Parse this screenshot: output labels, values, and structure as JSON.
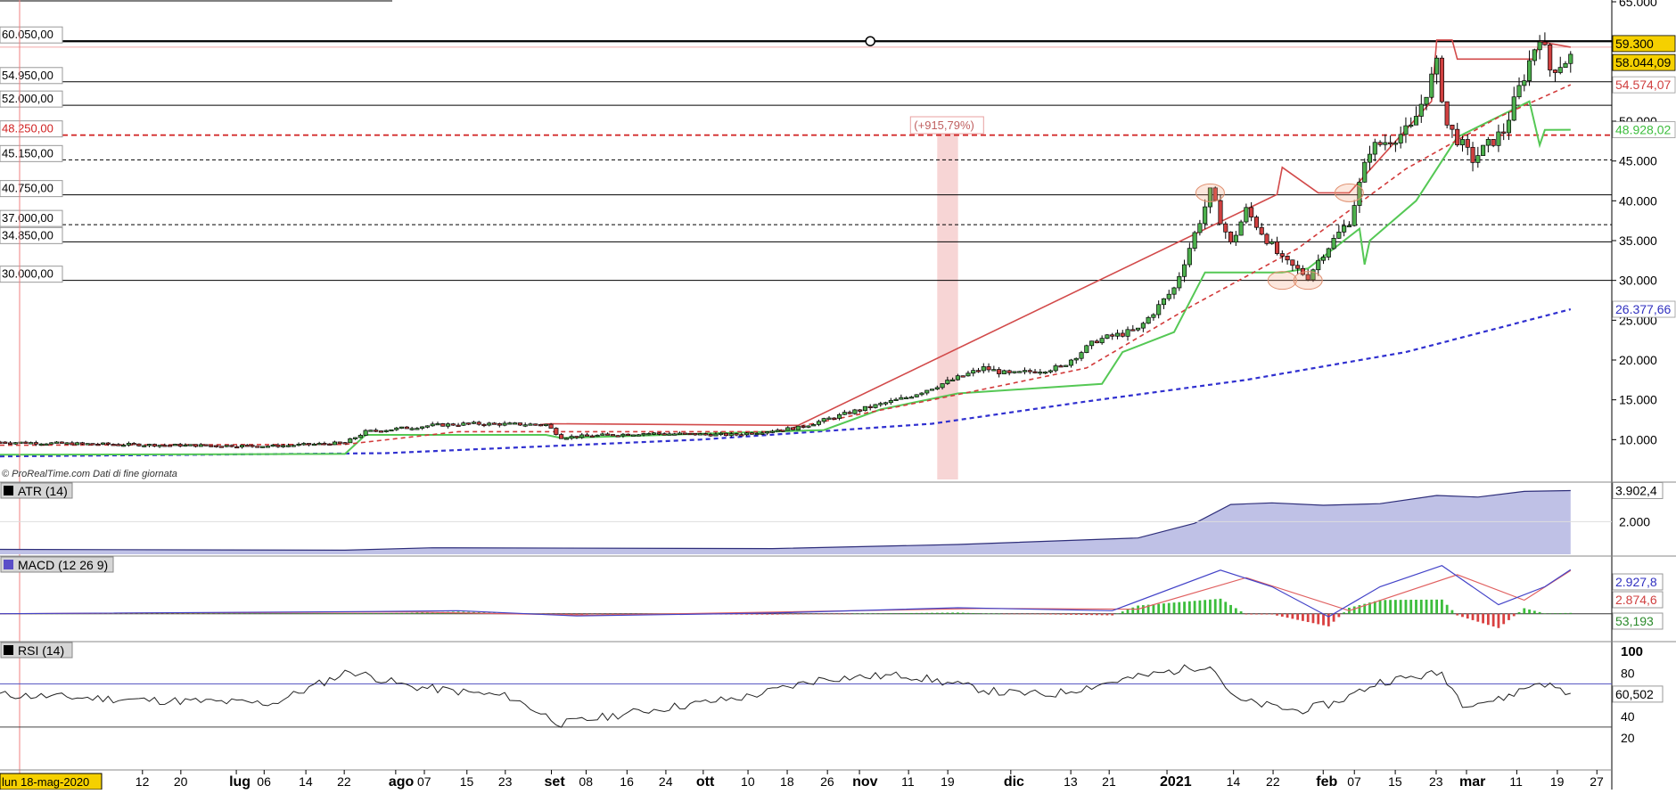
{
  "colors": {
    "candle_up": "#4db04d",
    "candle_down": "#d04040",
    "support_green": "#55c855",
    "resistance_red": "#d24a4a",
    "ma_red_dashed": "#d23a3a",
    "ma_blue_dashed": "#3030d0",
    "atr_fill": "#bfc1e6",
    "atr_line": "#2e2e7a",
    "macd_line": "#4343c8",
    "signal_line": "#e06060",
    "hist_pos": "#3cbd3c",
    "hist_neg": "#d94040",
    "rsi_line": "#222222",
    "rsi_band": "#5050c0",
    "highlight_band": "#f7d5d5",
    "price_box": "#f5d000"
  },
  "watermark": "© ProRealTime.com  Dati di fine giornata",
  "cursor_date": "lun 18-mag-2020",
  "price_levels": [
    {
      "label": "60.050,00",
      "value": 60050,
      "style": "solid-thick",
      "color": "#000000"
    },
    {
      "label": "54.950,00",
      "value": 54950,
      "style": "solid",
      "color": "#000000"
    },
    {
      "label": "52.000,00",
      "value": 52000,
      "style": "solid",
      "color": "#000000"
    },
    {
      "label": "48.250,00",
      "value": 48250,
      "style": "red-dashed",
      "color": "#d02020"
    },
    {
      "label": "45.150,00",
      "value": 45150,
      "style": "dashed",
      "color": "#000000"
    },
    {
      "label": "40.750,00",
      "value": 40750,
      "style": "solid",
      "color": "#000000"
    },
    {
      "label": "37.000,00",
      "value": 37000,
      "style": "dashed",
      "color": "#000000"
    },
    {
      "label": "34.850,00",
      "value": 34850,
      "style": "solid",
      "color": "#000000"
    },
    {
      "label": "30.000,00",
      "value": 30000,
      "style": "solid",
      "color": "#000000"
    }
  ],
  "highlight_label": "(+915,79%)",
  "right_value_tags": [
    {
      "label": "59.300",
      "bg": "#f5d000",
      "fg": "#000000",
      "value": 59300
    },
    {
      "label": "58.044,09",
      "bg": "#f5d000",
      "fg": "#000000",
      "value": 58044.09
    },
    {
      "label": "54.574,07",
      "bg": "#ffffff",
      "fg": "#d04040",
      "value": 54574.07
    },
    {
      "label": "48.928,02",
      "bg": "#ffffff",
      "fg": "#3cbd3c",
      "value": 48928.02
    },
    {
      "label": "26.377,66",
      "bg": "#ffffff",
      "fg": "#3030c0",
      "value": 26377.66
    }
  ],
  "x_axis": {
    "labels": [
      {
        "text": "12",
        "bold": false,
        "pos": 0.085
      },
      {
        "text": "20",
        "bold": false,
        "pos": 0.1079
      },
      {
        "text": "lug",
        "bold": true,
        "pos": 0.141
      },
      {
        "text": "06",
        "bold": false,
        "pos": 0.1576
      },
      {
        "text": "14",
        "bold": false,
        "pos": 0.1825
      },
      {
        "text": "22",
        "bold": false,
        "pos": 0.2054
      },
      {
        "text": "ago",
        "bold": true,
        "pos": 0.2361
      },
      {
        "text": "07",
        "bold": false,
        "pos": 0.2532
      },
      {
        "text": "15",
        "bold": false,
        "pos": 0.2786
      },
      {
        "text": "23",
        "bold": false,
        "pos": 0.3015
      },
      {
        "text": "set",
        "bold": true,
        "pos": 0.329
      },
      {
        "text": "08",
        "bold": false,
        "pos": 0.3497
      },
      {
        "text": "16",
        "bold": false,
        "pos": 0.3741
      },
      {
        "text": "24",
        "bold": false,
        "pos": 0.3973
      },
      {
        "text": "ott",
        "bold": true,
        "pos": 0.4196
      },
      {
        "text": "10",
        "bold": false,
        "pos": 0.4463
      },
      {
        "text": "18",
        "bold": false,
        "pos": 0.4697
      },
      {
        "text": "26",
        "bold": false,
        "pos": 0.4937
      },
      {
        "text": "nov",
        "bold": true,
        "pos": 0.5128
      },
      {
        "text": "11",
        "bold": false,
        "pos": 0.5421
      },
      {
        "text": "19",
        "bold": false,
        "pos": 0.5655
      },
      {
        "text": "dic",
        "bold": true,
        "pos": 0.6031
      },
      {
        "text": "13",
        "bold": false,
        "pos": 0.6389
      },
      {
        "text": "21",
        "bold": false,
        "pos": 0.6618
      },
      {
        "text": "2021",
        "bold": true,
        "pos": 0.6963
      },
      {
        "text": "14",
        "bold": false,
        "pos": 0.736
      },
      {
        "text": "22",
        "bold": false,
        "pos": 0.7596
      },
      {
        "text": "feb",
        "bold": true,
        "pos": 0.7895
      },
      {
        "text": "07",
        "bold": false,
        "pos": 0.8081
      },
      {
        "text": "15",
        "bold": false,
        "pos": 0.8325
      },
      {
        "text": "23",
        "bold": false,
        "pos": 0.8569
      },
      {
        "text": "mar",
        "bold": true,
        "pos": 0.875
      },
      {
        "text": "11",
        "bold": false,
        "pos": 0.905
      },
      {
        "text": "19",
        "bold": false,
        "pos": 0.9292
      },
      {
        "text": "27",
        "bold": false,
        "pos": 0.9528
      }
    ]
  },
  "panels": {
    "atr": {
      "title": "ATR (14)",
      "value_label": "3.902,4",
      "ticks": [
        {
          "label": "2.000",
          "value": 2000
        }
      ]
    },
    "macd": {
      "title": "MACD (12 26 9)",
      "macd_label": "2.927,8",
      "signal_label": "2.874,6",
      "hist_label": "53,193"
    },
    "rsi": {
      "title": "RSI (14)",
      "value_label": "60,502",
      "ticks": [
        {
          "label": "100",
          "value": 100
        },
        {
          "label": "80",
          "value": 80
        },
        {
          "label": "60",
          "value": 60
        },
        {
          "label": "40",
          "value": 40
        },
        {
          "label": "20",
          "value": 20
        }
      ]
    }
  },
  "chart_data": {
    "type": "candlestick",
    "title": "",
    "xlabel": "",
    "ylabel": "",
    "x_range": [
      "2020-05-18",
      "2021-03-27"
    ],
    "ylim": [
      5000,
      65000
    ],
    "y_ticks": [
      "10.000",
      "15.000",
      "20.000",
      "25.000",
      "30.000",
      "35.000",
      "40.000",
      "45.000",
      "50.000",
      "55.000",
      "60.000",
      "65.000"
    ],
    "close_anchors": [
      {
        "date": "2020-05-18",
        "value": 9700
      },
      {
        "date": "2020-06-01",
        "value": 9500
      },
      {
        "date": "2020-06-20",
        "value": 9300
      },
      {
        "date": "2020-07-10",
        "value": 9200
      },
      {
        "date": "2020-07-24",
        "value": 9600
      },
      {
        "date": "2020-07-28",
        "value": 11000
      },
      {
        "date": "2020-08-10",
        "value": 11800
      },
      {
        "date": "2020-08-17",
        "value": 12000
      },
      {
        "date": "2020-09-01",
        "value": 11900
      },
      {
        "date": "2020-09-04",
        "value": 10300
      },
      {
        "date": "2020-09-20",
        "value": 10800
      },
      {
        "date": "2020-10-07",
        "value": 10600
      },
      {
        "date": "2020-10-20",
        "value": 11500
      },
      {
        "date": "2020-10-31",
        "value": 13600
      },
      {
        "date": "2020-11-10",
        "value": 15300
      },
      {
        "date": "2020-11-25",
        "value": 19000
      },
      {
        "date": "2020-11-30",
        "value": 18200
      },
      {
        "date": "2020-12-10",
        "value": 19100
      },
      {
        "date": "2020-12-17",
        "value": 22500
      },
      {
        "date": "2020-12-25",
        "value": 23800
      },
      {
        "date": "2021-01-01",
        "value": 29000
      },
      {
        "date": "2021-01-08",
        "value": 41000
      },
      {
        "date": "2021-01-12",
        "value": 34500
      },
      {
        "date": "2021-01-15",
        "value": 38800
      },
      {
        "date": "2021-01-22",
        "value": 32500
      },
      {
        "date": "2021-01-27",
        "value": 30500
      },
      {
        "date": "2021-01-30",
        "value": 33500
      },
      {
        "date": "2021-02-04",
        "value": 37500
      },
      {
        "date": "2021-02-08",
        "value": 46500
      },
      {
        "date": "2021-02-16",
        "value": 49000
      },
      {
        "date": "2021-02-21",
        "value": 57000
      },
      {
        "date": "2021-02-23",
        "value": 49500
      },
      {
        "date": "2021-02-28",
        "value": 45200
      },
      {
        "date": "2021-03-06",
        "value": 48800
      },
      {
        "date": "2021-03-13",
        "value": 61000
      },
      {
        "date": "2021-03-15",
        "value": 56500
      },
      {
        "date": "2021-03-19",
        "value": 58044
      }
    ],
    "support_line": [
      {
        "date": "2020-05-18",
        "value": 8100
      },
      {
        "date": "2020-07-24",
        "value": 8200
      },
      {
        "date": "2020-07-28",
        "value": 10600
      },
      {
        "date": "2020-09-01",
        "value": 10600
      },
      {
        "date": "2020-09-04",
        "value": 10200
      },
      {
        "date": "2020-10-25",
        "value": 11200
      },
      {
        "date": "2020-11-05",
        "value": 13800
      },
      {
        "date": "2020-11-20",
        "value": 15800
      },
      {
        "date": "2020-12-18",
        "value": 17000
      },
      {
        "date": "2020-12-22",
        "value": 21000
      },
      {
        "date": "2021-01-01",
        "value": 23500
      },
      {
        "date": "2021-01-05",
        "value": 28500
      },
      {
        "date": "2021-01-07",
        "value": 31000
      },
      {
        "date": "2021-01-22",
        "value": 31000
      },
      {
        "date": "2021-01-27",
        "value": 31500
      },
      {
        "date": "2021-02-06",
        "value": 36500
      },
      {
        "date": "2021-02-07",
        "value": 32000
      },
      {
        "date": "2021-02-08",
        "value": 35000
      },
      {
        "date": "2021-02-17",
        "value": 40000
      },
      {
        "date": "2021-02-25",
        "value": 48000
      },
      {
        "date": "2021-03-11",
        "value": 52500
      },
      {
        "date": "2021-03-13",
        "value": 47000
      },
      {
        "date": "2021-03-14",
        "value": 48900
      },
      {
        "date": "2021-03-19",
        "value": 48928
      }
    ],
    "resistance_line": [
      {
        "date": "2020-08-31",
        "value": 11900
      },
      {
        "date": "2020-09-02",
        "value": 12000
      },
      {
        "date": "2020-10-20",
        "value": 11800
      },
      {
        "date": "2021-01-21",
        "value": 40800
      },
      {
        "date": "2021-01-22",
        "value": 44200
      },
      {
        "date": "2021-01-29",
        "value": 41000
      },
      {
        "date": "2021-02-04",
        "value": 41000
      },
      {
        "date": "2021-02-20",
        "value": 52500
      },
      {
        "date": "2021-02-21",
        "value": 60200
      },
      {
        "date": "2021-02-24",
        "value": 60200
      },
      {
        "date": "2021-02-25",
        "value": 57800
      },
      {
        "date": "2021-03-12",
        "value": 57800
      },
      {
        "date": "2021-03-13",
        "value": 60000
      },
      {
        "date": "2021-03-19",
        "value": 59300
      }
    ],
    "ma_short_dashed": [
      {
        "date": "2020-05-18",
        "value": 9300
      },
      {
        "date": "2020-07-24",
        "value": 9400
      },
      {
        "date": "2020-08-15",
        "value": 11000
      },
      {
        "date": "2020-10-15",
        "value": 11000
      },
      {
        "date": "2020-11-15",
        "value": 15000
      },
      {
        "date": "2020-12-15",
        "value": 19000
      },
      {
        "date": "2021-01-05",
        "value": 27000
      },
      {
        "date": "2021-01-25",
        "value": 34000
      },
      {
        "date": "2021-02-15",
        "value": 44000
      },
      {
        "date": "2021-03-05",
        "value": 50500
      },
      {
        "date": "2021-03-19",
        "value": 54574
      }
    ],
    "ma_long_dashed": [
      {
        "date": "2020-05-18",
        "value": 7900
      },
      {
        "date": "2020-08-01",
        "value": 8300
      },
      {
        "date": "2020-10-01",
        "value": 10000
      },
      {
        "date": "2020-11-15",
        "value": 12000
      },
      {
        "date": "2020-12-15",
        "value": 14800
      },
      {
        "date": "2021-01-15",
        "value": 17500
      },
      {
        "date": "2021-02-15",
        "value": 21000
      },
      {
        "date": "2021-03-19",
        "value": 26378
      }
    ],
    "highlight_band": {
      "from": "2020-11-16",
      "to": "2020-11-19"
    },
    "ellipses": [
      {
        "date": "2021-01-08",
        "value": 41000
      },
      {
        "date": "2021-01-22",
        "value": 30000
      },
      {
        "date": "2021-01-27",
        "value": 30000
      },
      {
        "date": "2021-02-04",
        "value": 41000
      }
    ],
    "circle_marker": {
      "date": "2020-11-03",
      "value": 60050
    },
    "atr_series": [
      {
        "date": "2020-05-18",
        "value": 300
      },
      {
        "date": "2020-07-24",
        "value": 250
      },
      {
        "date": "2020-08-10",
        "value": 400
      },
      {
        "date": "2020-10-15",
        "value": 350
      },
      {
        "date": "2020-11-20",
        "value": 600
      },
      {
        "date": "2020-12-25",
        "value": 1000
      },
      {
        "date": "2021-01-05",
        "value": 1900
      },
      {
        "date": "2021-01-12",
        "value": 3050
      },
      {
        "date": "2021-01-20",
        "value": 3150
      },
      {
        "date": "2021-01-30",
        "value": 3000
      },
      {
        "date": "2021-02-10",
        "value": 3100
      },
      {
        "date": "2021-02-21",
        "value": 3600
      },
      {
        "date": "2021-03-01",
        "value": 3500
      },
      {
        "date": "2021-03-10",
        "value": 3850
      },
      {
        "date": "2021-03-19",
        "value": 3902
      }
    ],
    "atr_ylim": [
      0,
      4200
    ],
    "macd_series": [
      {
        "date": "2020-05-18",
        "value": 0
      },
      {
        "date": "2020-07-30",
        "value": 150
      },
      {
        "date": "2020-08-15",
        "value": 200
      },
      {
        "date": "2020-09-07",
        "value": -150
      },
      {
        "date": "2020-10-15",
        "value": 50
      },
      {
        "date": "2020-11-20",
        "value": 400
      },
      {
        "date": "2020-12-20",
        "value": 200
      },
      {
        "date": "2021-01-10",
        "value": 2900
      },
      {
        "date": "2021-01-20",
        "value": 1800
      },
      {
        "date": "2021-01-31",
        "value": -200
      },
      {
        "date": "2021-02-10",
        "value": 1800
      },
      {
        "date": "2021-02-22",
        "value": 3200
      },
      {
        "date": "2021-03-05",
        "value": 600
      },
      {
        "date": "2021-03-14",
        "value": 1800
      },
      {
        "date": "2021-03-19",
        "value": 2928
      }
    ],
    "signal_series": [
      {
        "date": "2020-05-18",
        "value": 0
      },
      {
        "date": "2020-08-05",
        "value": 120
      },
      {
        "date": "2020-09-10",
        "value": -100
      },
      {
        "date": "2020-11-25",
        "value": 350
      },
      {
        "date": "2020-12-25",
        "value": 300
      },
      {
        "date": "2021-01-15",
        "value": 2400
      },
      {
        "date": "2021-02-04",
        "value": 200
      },
      {
        "date": "2021-02-25",
        "value": 2600
      },
      {
        "date": "2021-03-10",
        "value": 900
      },
      {
        "date": "2021-03-19",
        "value": 2875
      }
    ],
    "macd_ylim": [
      -1500,
      3600
    ],
    "rsi_series": [
      {
        "date": "2020-05-18",
        "value": 60
      },
      {
        "date": "2020-06-15",
        "value": 55
      },
      {
        "date": "2020-07-10",
        "value": 52
      },
      {
        "date": "2020-07-25",
        "value": 82
      },
      {
        "date": "2020-08-05",
        "value": 68
      },
      {
        "date": "2020-08-25",
        "value": 58
      },
      {
        "date": "2020-09-04",
        "value": 33
      },
      {
        "date": "2020-09-20",
        "value": 45
      },
      {
        "date": "2020-10-10",
        "value": 58
      },
      {
        "date": "2020-10-25",
        "value": 75
      },
      {
        "date": "2020-11-10",
        "value": 78
      },
      {
        "date": "2020-11-28",
        "value": 62
      },
      {
        "date": "2020-12-08",
        "value": 60
      },
      {
        "date": "2020-12-20",
        "value": 72
      },
      {
        "date": "2021-01-08",
        "value": 88
      },
      {
        "date": "2021-01-13",
        "value": 55
      },
      {
        "date": "2021-01-25",
        "value": 45
      },
      {
        "date": "2021-02-01",
        "value": 52
      },
      {
        "date": "2021-02-10",
        "value": 72
      },
      {
        "date": "2021-02-22",
        "value": 80
      },
      {
        "date": "2021-02-26",
        "value": 52
      },
      {
        "date": "2021-03-05",
        "value": 55
      },
      {
        "date": "2021-03-13",
        "value": 72
      },
      {
        "date": "2021-03-19",
        "value": 60.5
      }
    ],
    "rsi_bands": [
      70,
      30
    ]
  }
}
